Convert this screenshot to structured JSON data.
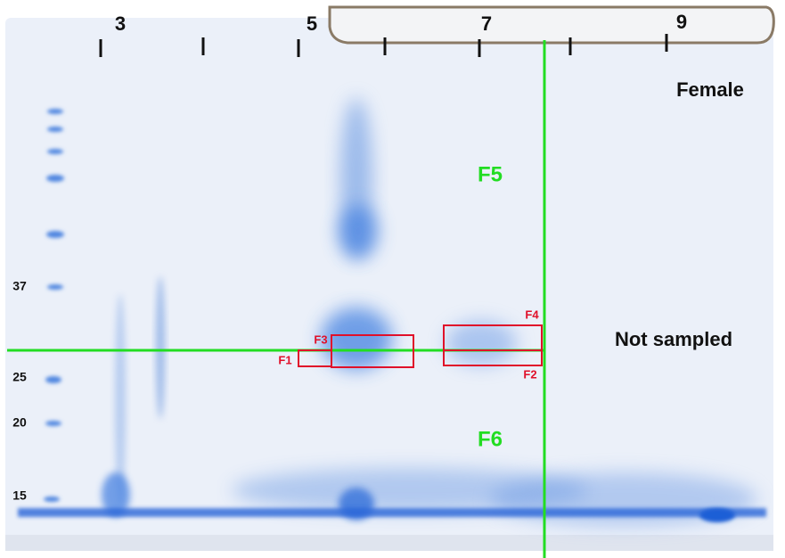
{
  "ph_labels": [
    "3",
    "5",
    "7",
    "9"
  ],
  "mw_labels": [
    "37",
    "25",
    "20",
    "15"
  ],
  "sex_label": "Female",
  "unsampled_label": "Not sampled",
  "fraction_labels": [
    "F5",
    "F6"
  ],
  "spot_labels": [
    "F1",
    "F2",
    "F3",
    "F4"
  ]
}
